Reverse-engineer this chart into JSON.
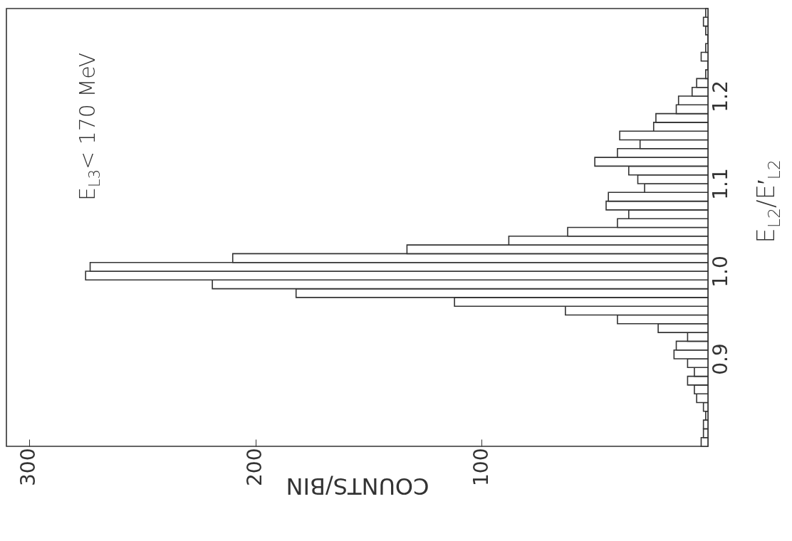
{
  "chart_data": {
    "type": "histogram",
    "orientation": "horizontal",
    "xlabel": "COUNTS/BIN",
    "ylabel": "E$_{L2}$/E′$_{L2}$",
    "annotations": [
      "E$_{L3}$< 170 MeV"
    ],
    "bins": [
      0.8,
      0.81,
      0.82,
      0.83,
      0.84,
      0.85,
      0.86,
      0.87,
      0.88,
      0.89,
      0.9,
      0.91,
      0.92,
      0.93,
      0.94,
      0.95,
      0.96,
      0.97,
      0.98,
      0.99,
      1.0,
      1.01,
      1.02,
      1.03,
      1.04,
      1.05,
      1.06,
      1.07,
      1.08,
      1.09,
      1.1,
      1.11,
      1.12,
      1.13,
      1.14,
      1.15,
      1.16,
      1.17,
      1.18,
      1.19,
      1.2,
      1.21,
      1.22,
      1.23,
      1.24,
      1.25,
      1.26,
      1.27,
      1.28,
      1.29,
      1.3
    ],
    "values": [
      3,
      2,
      2,
      1,
      2,
      5,
      6,
      9,
      6,
      9,
      15,
      14,
      9,
      22,
      40,
      63,
      112,
      182,
      219,
      275,
      273,
      210,
      133,
      88,
      62,
      40,
      35,
      45,
      44,
      28,
      31,
      35,
      50,
      40,
      30,
      39,
      24,
      23,
      14,
      13,
      7,
      5,
      1,
      0,
      3,
      1,
      0,
      1,
      2,
      1
    ],
    "color": "#333333",
    "xlim": [
      310,
      0
    ],
    "ylim": [
      0.8,
      1.3
    ],
    "xticks": [
      100,
      200,
      300
    ],
    "yticks": [
      0.9,
      {
        "value": 1,
        "label": "1.0"
      },
      1.1,
      1.2
    ]
  }
}
